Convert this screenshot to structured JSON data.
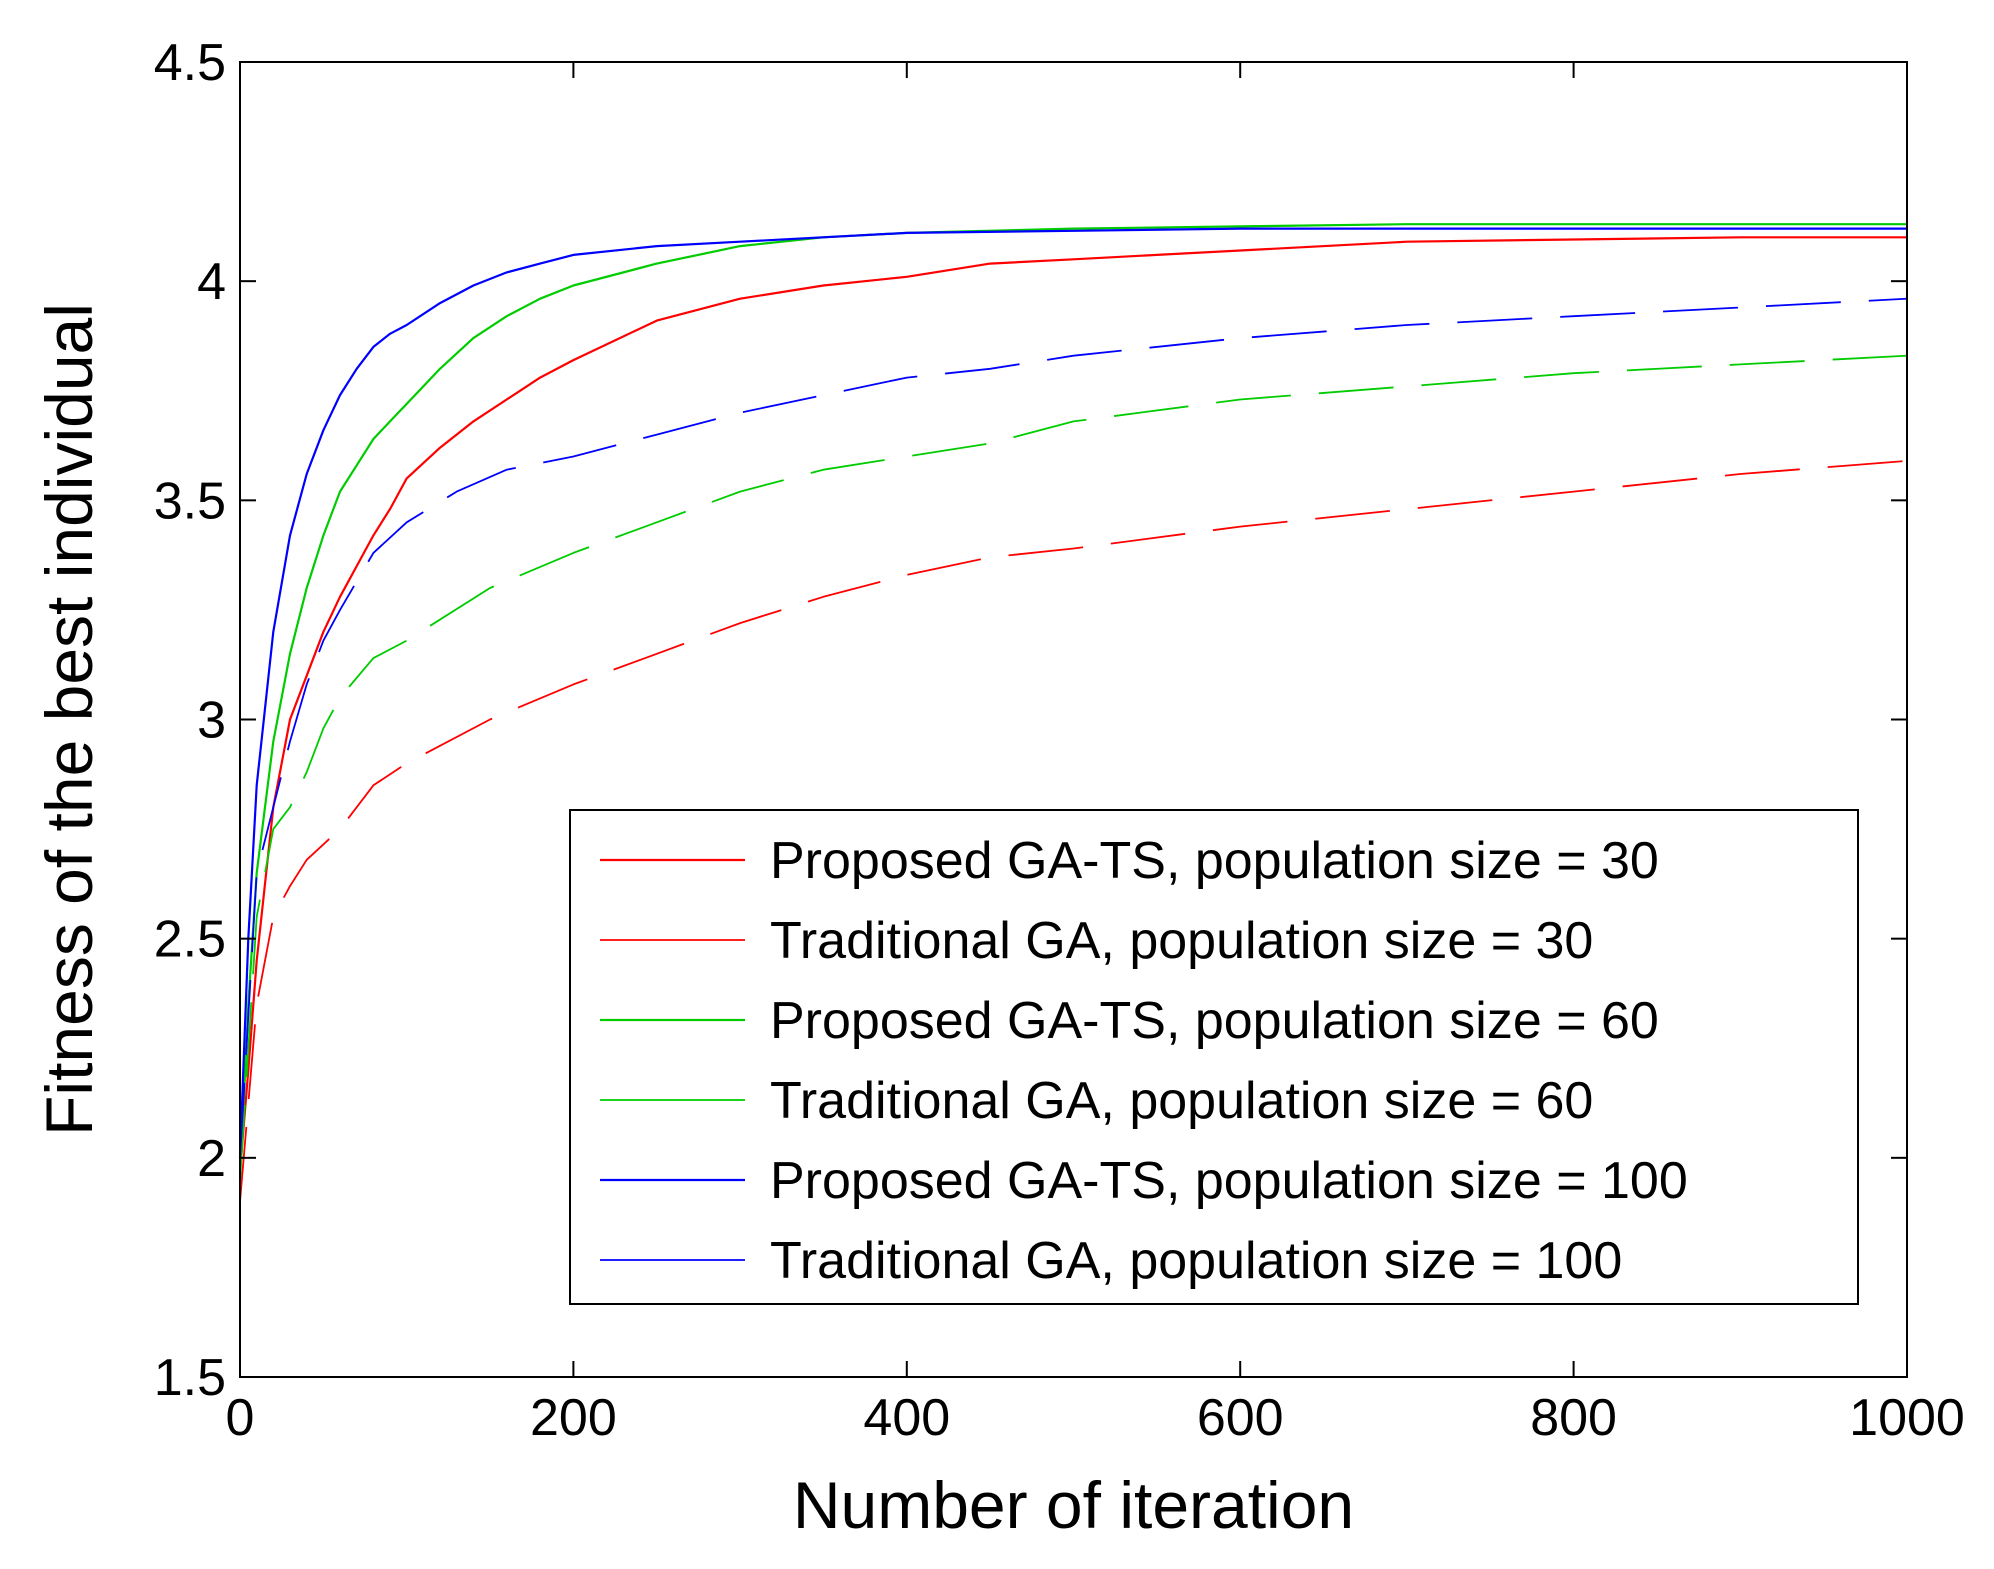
{
  "chart_data": {
    "type": "line",
    "title": "",
    "xlabel": "Number of iteration",
    "ylabel": "Fitness of the best individual",
    "xlim": [
      0,
      1000
    ],
    "ylim": [
      1.5,
      4.5
    ],
    "xticks": [
      0,
      200,
      400,
      600,
      800,
      1000
    ],
    "yticks": [
      1.5,
      2,
      2.5,
      3,
      3.5,
      4,
      4.5
    ],
    "xtick_labels": [
      "0",
      "200",
      "400",
      "600",
      "800",
      "1000"
    ],
    "ytick_labels": [
      "1.5",
      "2",
      "2.5",
      "3",
      "3.5",
      "4",
      "4.5"
    ],
    "grid": false,
    "legend_position": "lower-right",
    "series": [
      {
        "name": "Proposed GA-TS, population size = 30",
        "color": "#ff0000",
        "style": "solid",
        "x": [
          0,
          5,
          10,
          20,
          30,
          40,
          50,
          60,
          70,
          80,
          90,
          100,
          120,
          140,
          160,
          180,
          200,
          250,
          300,
          350,
          400,
          450,
          500,
          600,
          700,
          800,
          900,
          1000
        ],
        "y": [
          1.97,
          2.2,
          2.45,
          2.8,
          3.0,
          3.1,
          3.2,
          3.28,
          3.35,
          3.42,
          3.48,
          3.55,
          3.62,
          3.68,
          3.73,
          3.78,
          3.82,
          3.91,
          3.96,
          3.99,
          4.01,
          4.04,
          4.05,
          4.07,
          4.09,
          4.095,
          4.1,
          4.1
        ]
      },
      {
        "name": "Traditional GA, population size = 30",
        "color": "#ff0000",
        "style": "dashed",
        "x": [
          0,
          10,
          20,
          30,
          40,
          60,
          80,
          100,
          150,
          200,
          250,
          300,
          350,
          400,
          450,
          500,
          600,
          700,
          800,
          900,
          1000
        ],
        "y": [
          1.9,
          2.35,
          2.55,
          2.62,
          2.68,
          2.75,
          2.85,
          2.9,
          3.0,
          3.08,
          3.15,
          3.22,
          3.28,
          3.33,
          3.37,
          3.39,
          3.44,
          3.48,
          3.52,
          3.56,
          3.59
        ]
      },
      {
        "name": "Proposed GA-TS, population size = 60",
        "color": "#00cc00",
        "style": "solid",
        "x": [
          0,
          5,
          10,
          20,
          30,
          40,
          50,
          60,
          70,
          80,
          90,
          100,
          120,
          140,
          160,
          180,
          200,
          250,
          300,
          350,
          400,
          500,
          600,
          700,
          800,
          900,
          1000
        ],
        "y": [
          1.95,
          2.35,
          2.65,
          2.95,
          3.15,
          3.3,
          3.42,
          3.52,
          3.58,
          3.64,
          3.68,
          3.72,
          3.8,
          3.87,
          3.92,
          3.96,
          3.99,
          4.04,
          4.08,
          4.1,
          4.11,
          4.12,
          4.125,
          4.13,
          4.13,
          4.13,
          4.13
        ]
      },
      {
        "name": "Traditional GA, population size = 60",
        "color": "#00cc00",
        "style": "dashed",
        "x": [
          0,
          10,
          20,
          30,
          40,
          50,
          60,
          80,
          100,
          150,
          200,
          250,
          300,
          350,
          400,
          450,
          500,
          600,
          700,
          800,
          900,
          1000
        ],
        "y": [
          1.95,
          2.55,
          2.75,
          2.8,
          2.88,
          2.98,
          3.05,
          3.14,
          3.18,
          3.3,
          3.38,
          3.45,
          3.52,
          3.57,
          3.6,
          3.63,
          3.68,
          3.73,
          3.76,
          3.79,
          3.81,
          3.83
        ]
      },
      {
        "name": "Proposed GA-TS, population size = 100",
        "color": "#0000ff",
        "style": "solid",
        "x": [
          0,
          5,
          10,
          20,
          30,
          40,
          50,
          60,
          70,
          80,
          90,
          100,
          120,
          140,
          160,
          180,
          200,
          250,
          300,
          400,
          500,
          600,
          700,
          800,
          900,
          1000
        ],
        "y": [
          2.0,
          2.5,
          2.85,
          3.2,
          3.42,
          3.56,
          3.66,
          3.74,
          3.8,
          3.85,
          3.88,
          3.9,
          3.95,
          3.99,
          4.02,
          4.04,
          4.06,
          4.08,
          4.09,
          4.11,
          4.115,
          4.12,
          4.12,
          4.12,
          4.12,
          4.12
        ]
      },
      {
        "name": "Traditional GA, population size = 100",
        "color": "#0000ff",
        "style": "dashed",
        "x": [
          0,
          10,
          20,
          30,
          40,
          50,
          60,
          80,
          100,
          130,
          160,
          200,
          250,
          300,
          350,
          400,
          450,
          500,
          600,
          700,
          800,
          900,
          1000
        ],
        "y": [
          2.0,
          2.65,
          2.8,
          2.95,
          3.08,
          3.18,
          3.25,
          3.38,
          3.45,
          3.52,
          3.57,
          3.6,
          3.65,
          3.7,
          3.74,
          3.78,
          3.8,
          3.83,
          3.87,
          3.9,
          3.92,
          3.94,
          3.96
        ]
      }
    ]
  }
}
